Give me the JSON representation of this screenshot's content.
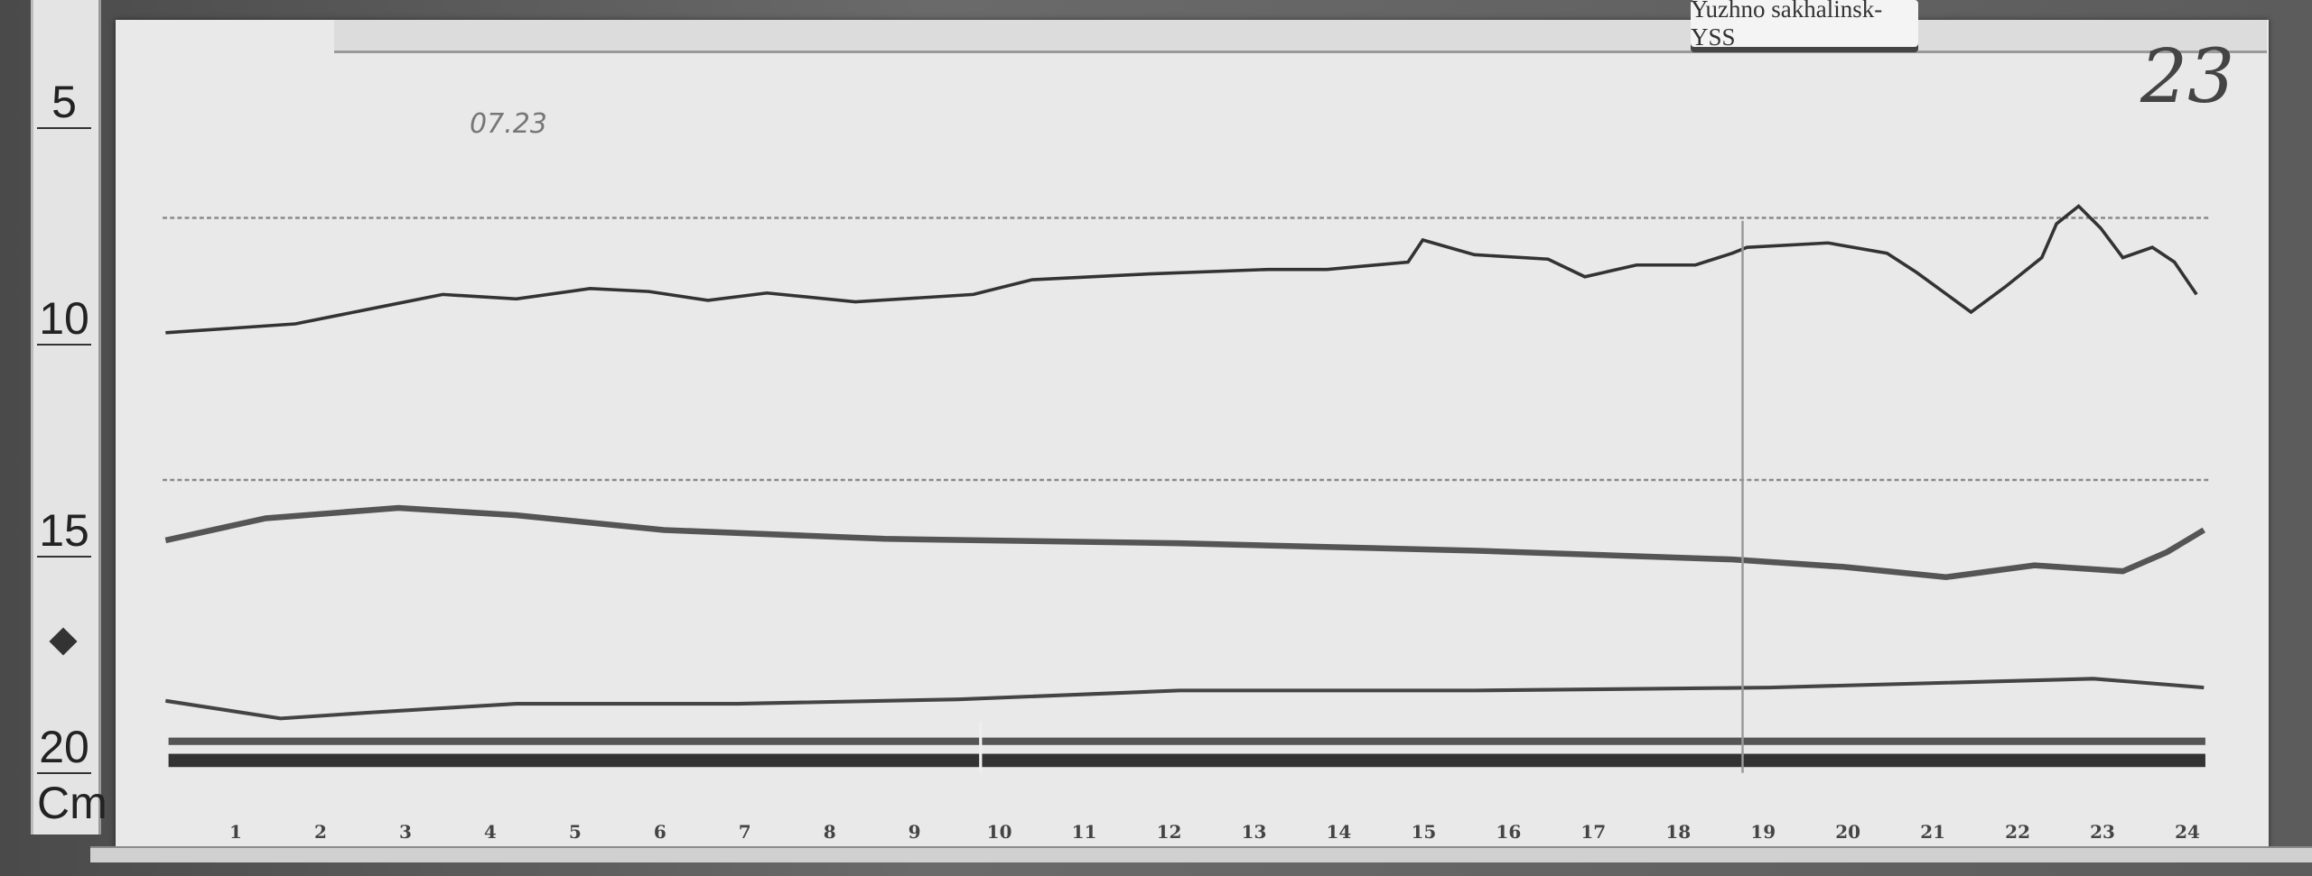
{
  "station_label": "Yuzhno sakhalinsk-YSS",
  "plate_number": "23",
  "date_note": "07.23",
  "ruler": {
    "marks": [
      "5",
      "10",
      "15",
      "20"
    ],
    "unit": "Cm"
  },
  "hours": [
    "1",
    "2",
    "3",
    "4",
    "5",
    "6",
    "7",
    "8",
    "9",
    "10",
    "11",
    "12",
    "13",
    "14",
    "15",
    "16",
    "17",
    "18",
    "19",
    "20",
    "21",
    "22",
    "23",
    "24"
  ],
  "colors": {
    "paper": "#e9e9e9",
    "trace": "#333333",
    "baseline": "#8a8a8a"
  }
}
